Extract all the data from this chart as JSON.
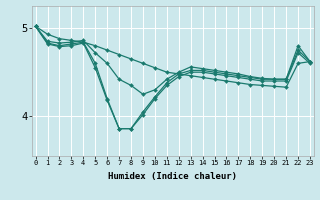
{
  "xlabel": "Humidex (Indice chaleur)",
  "background_color": "#cce8ec",
  "line_color": "#1a7a6e",
  "grid_color": "#ffffff",
  "x_ticks": [
    0,
    1,
    2,
    3,
    4,
    5,
    6,
    7,
    8,
    9,
    10,
    11,
    12,
    13,
    14,
    15,
    16,
    17,
    18,
    19,
    20,
    21,
    22,
    23
  ],
  "y_ticks": [
    4,
    5
  ],
  "ylim": [
    3.55,
    5.25
  ],
  "xlim": [
    -0.3,
    23.3
  ],
  "series": [
    {
      "x": [
        0,
        1,
        2,
        3,
        4,
        5,
        6,
        7,
        8,
        9,
        10,
        11,
        12,
        13,
        14,
        15,
        16,
        17,
        18,
        19,
        20,
        21,
        22,
        23
      ],
      "y": [
        5.02,
        4.93,
        4.88,
        4.86,
        4.84,
        4.8,
        4.75,
        4.7,
        4.65,
        4.6,
        4.55,
        4.5,
        4.48,
        4.46,
        4.44,
        4.42,
        4.4,
        4.38,
        4.36,
        4.35,
        4.34,
        4.33,
        4.6,
        4.62
      ]
    },
    {
      "x": [
        0,
        1,
        2,
        3,
        4,
        5,
        6,
        7,
        8,
        9,
        10,
        11,
        12,
        13,
        14,
        15,
        16,
        17,
        18,
        19,
        20,
        21,
        22,
        23
      ],
      "y": [
        5.02,
        4.85,
        4.83,
        4.84,
        4.86,
        4.72,
        4.6,
        4.42,
        4.35,
        4.25,
        4.3,
        4.42,
        4.5,
        4.56,
        4.54,
        4.52,
        4.5,
        4.48,
        4.45,
        4.43,
        4.42,
        4.42,
        4.8,
        4.62
      ]
    },
    {
      "x": [
        0,
        1,
        2,
        3,
        4,
        5,
        6,
        7,
        8,
        9,
        10,
        11,
        12,
        13,
        14,
        15,
        16,
        17,
        18,
        19,
        20,
        21,
        22,
        23
      ],
      "y": [
        5.02,
        4.83,
        4.8,
        4.82,
        4.84,
        4.6,
        4.2,
        3.86,
        3.86,
        4.05,
        4.22,
        4.38,
        4.48,
        4.52,
        4.52,
        4.5,
        4.48,
        4.46,
        4.44,
        4.42,
        4.42,
        4.42,
        4.75,
        4.62
      ]
    },
    {
      "x": [
        0,
        1,
        2,
        3,
        4,
        5,
        6,
        7,
        8,
        9,
        10,
        11,
        12,
        13,
        14,
        15,
        16,
        17,
        18,
        19,
        20,
        21,
        22,
        23
      ],
      "y": [
        5.02,
        4.82,
        4.79,
        4.8,
        4.83,
        4.55,
        4.18,
        3.86,
        3.86,
        4.02,
        4.2,
        4.35,
        4.45,
        4.5,
        4.5,
        4.48,
        4.46,
        4.44,
        4.42,
        4.4,
        4.4,
        4.4,
        4.72,
        4.6
      ]
    }
  ]
}
